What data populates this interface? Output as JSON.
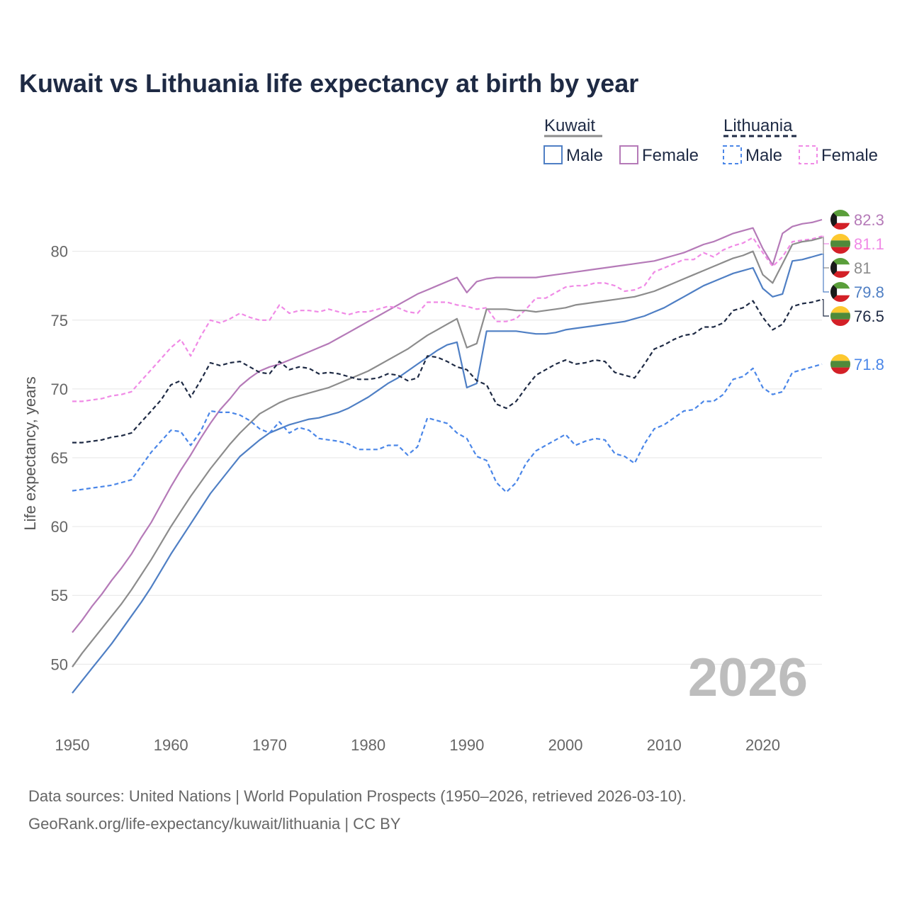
{
  "chart_data": {
    "type": "line",
    "title": "Kuwait vs Lithuania life expectancy at birth by year",
    "xlabel": "",
    "ylabel": "Life expectancy, years",
    "xlim": [
      1950,
      2026
    ],
    "ylim": [
      46,
      84
    ],
    "x_ticks": [
      "1950",
      "1960",
      "1970",
      "1980",
      "1990",
      "2000",
      "2010",
      "2020"
    ],
    "y_ticks": [
      "50",
      "55",
      "60",
      "65",
      "70",
      "75",
      "80"
    ],
    "current_year": "2026",
    "legend": {
      "groups": [
        {
          "label": "Kuwait",
          "items": [
            "Male",
            "Female"
          ]
        },
        {
          "label": "Lithuania",
          "items": [
            "Male",
            "Female"
          ]
        }
      ]
    },
    "x": [
      1950,
      1951,
      1952,
      1953,
      1954,
      1955,
      1956,
      1957,
      1958,
      1959,
      1960,
      1961,
      1962,
      1963,
      1964,
      1965,
      1966,
      1967,
      1968,
      1969,
      1970,
      1971,
      1972,
      1973,
      1974,
      1975,
      1976,
      1977,
      1978,
      1979,
      1980,
      1981,
      1982,
      1983,
      1984,
      1985,
      1986,
      1987,
      1988,
      1989,
      1990,
      1991,
      1992,
      1993,
      1994,
      1995,
      1996,
      1997,
      1998,
      1999,
      2000,
      2001,
      2002,
      2003,
      2004,
      2005,
      2006,
      2007,
      2008,
      2009,
      2010,
      2011,
      2012,
      2013,
      2014,
      2015,
      2016,
      2017,
      2018,
      2019,
      2020,
      2021,
      2022,
      2023,
      2024,
      2025,
      2026
    ],
    "series": [
      {
        "name": "Kuwait Female",
        "country": "Kuwait",
        "sex": "Female",
        "color": "#b57ab8",
        "dash": false,
        "end_label": "82.3",
        "values": [
          52.3,
          53.2,
          54.2,
          55.1,
          56.1,
          57.0,
          58.0,
          59.2,
          60.3,
          61.6,
          62.9,
          64.1,
          65.2,
          66.4,
          67.5,
          68.5,
          69.3,
          70.2,
          70.8,
          71.3,
          71.6,
          71.8,
          72.1,
          72.4,
          72.7,
          73.0,
          73.3,
          73.7,
          74.1,
          74.5,
          74.9,
          75.3,
          75.7,
          76.1,
          76.5,
          76.9,
          77.2,
          77.5,
          77.8,
          78.1,
          77.0,
          77.8,
          78.0,
          78.1,
          78.1,
          78.1,
          78.1,
          78.1,
          78.2,
          78.3,
          78.4,
          78.5,
          78.6,
          78.7,
          78.8,
          78.9,
          79.0,
          79.1,
          79.2,
          79.3,
          79.5,
          79.7,
          79.9,
          80.2,
          80.5,
          80.7,
          81.0,
          81.3,
          81.5,
          81.7,
          80.2,
          79.0,
          81.3,
          81.8,
          82.0,
          82.1,
          82.3
        ]
      },
      {
        "name": "Lithuania Female",
        "country": "Lithuania",
        "sex": "Female",
        "color": "#f08ae6",
        "dash": true,
        "end_label": "81.1",
        "values": [
          69.1,
          69.1,
          69.2,
          69.3,
          69.5,
          69.6,
          69.8,
          70.6,
          71.4,
          72.2,
          73.0,
          73.6,
          72.4,
          73.8,
          75.0,
          74.8,
          75.1,
          75.5,
          75.2,
          75.0,
          75.0,
          76.1,
          75.5,
          75.7,
          75.7,
          75.6,
          75.8,
          75.6,
          75.4,
          75.6,
          75.6,
          75.8,
          76.0,
          75.9,
          75.6,
          75.5,
          76.3,
          76.3,
          76.3,
          76.1,
          76.0,
          75.8,
          75.9,
          74.9,
          74.9,
          75.1,
          75.8,
          76.6,
          76.6,
          77.0,
          77.4,
          77.5,
          77.5,
          77.7,
          77.7,
          77.5,
          77.1,
          77.2,
          77.5,
          78.5,
          78.8,
          79.1,
          79.4,
          79.4,
          79.9,
          79.6,
          80.1,
          80.4,
          80.6,
          81.0,
          79.9,
          78.9,
          79.6,
          80.7,
          80.8,
          80.9,
          81.1
        ]
      },
      {
        "name": "Kuwait Total",
        "country": "Kuwait",
        "sex": "Total",
        "color": "#8c8c8c",
        "dash": false,
        "end_label": "81",
        "values": [
          49.8,
          50.8,
          51.7,
          52.6,
          53.5,
          54.4,
          55.4,
          56.5,
          57.6,
          58.8,
          60.0,
          61.1,
          62.2,
          63.2,
          64.2,
          65.1,
          66.0,
          66.8,
          67.5,
          68.2,
          68.6,
          69.0,
          69.3,
          69.5,
          69.7,
          69.9,
          70.1,
          70.4,
          70.7,
          71.0,
          71.3,
          71.7,
          72.1,
          72.5,
          72.9,
          73.4,
          73.9,
          74.3,
          74.7,
          75.1,
          73.0,
          73.3,
          75.8,
          75.8,
          75.8,
          75.7,
          75.7,
          75.6,
          75.7,
          75.8,
          75.9,
          76.1,
          76.2,
          76.3,
          76.4,
          76.5,
          76.6,
          76.7,
          76.9,
          77.1,
          77.4,
          77.7,
          78.0,
          78.3,
          78.6,
          78.9,
          79.2,
          79.5,
          79.7,
          80.0,
          78.3,
          77.7,
          79.1,
          80.5,
          80.7,
          80.8,
          81.0
        ]
      },
      {
        "name": "Kuwait Male",
        "country": "Kuwait",
        "sex": "Male",
        "color": "#4f7fc4",
        "dash": false,
        "end_label": "79.8",
        "values": [
          47.9,
          48.8,
          49.7,
          50.6,
          51.5,
          52.5,
          53.5,
          54.5,
          55.6,
          56.8,
          58.0,
          59.1,
          60.2,
          61.3,
          62.4,
          63.3,
          64.2,
          65.1,
          65.7,
          66.3,
          66.8,
          67.1,
          67.4,
          67.6,
          67.8,
          67.9,
          68.1,
          68.3,
          68.6,
          69.0,
          69.4,
          69.9,
          70.4,
          70.8,
          71.3,
          71.8,
          72.3,
          72.8,
          73.2,
          73.4,
          70.1,
          70.4,
          74.2,
          74.2,
          74.2,
          74.2,
          74.1,
          74.0,
          74.0,
          74.1,
          74.3,
          74.4,
          74.5,
          74.6,
          74.7,
          74.8,
          74.9,
          75.1,
          75.3,
          75.6,
          75.9,
          76.3,
          76.7,
          77.1,
          77.5,
          77.8,
          78.1,
          78.4,
          78.6,
          78.8,
          77.3,
          76.7,
          76.9,
          79.3,
          79.4,
          79.6,
          79.8
        ]
      },
      {
        "name": "Lithuania Total",
        "country": "Lithuania",
        "sex": "Total",
        "color": "#1e2a44",
        "dash": true,
        "end_label": "76.5",
        "values": [
          66.1,
          66.1,
          66.2,
          66.3,
          66.5,
          66.6,
          66.8,
          67.6,
          68.4,
          69.2,
          70.3,
          70.6,
          69.4,
          70.6,
          71.9,
          71.7,
          71.9,
          72.0,
          71.6,
          71.2,
          71.1,
          72.0,
          71.4,
          71.6,
          71.5,
          71.1,
          71.2,
          71.1,
          70.9,
          70.7,
          70.7,
          70.8,
          71.1,
          71.0,
          70.6,
          70.8,
          72.4,
          72.3,
          72.0,
          71.6,
          71.4,
          70.6,
          70.3,
          68.9,
          68.6,
          69.1,
          70.1,
          71.0,
          71.4,
          71.8,
          72.1,
          71.8,
          71.9,
          72.1,
          72.0,
          71.2,
          71.0,
          70.8,
          71.8,
          72.9,
          73.2,
          73.6,
          73.9,
          74.0,
          74.5,
          74.5,
          74.8,
          75.7,
          75.9,
          76.4,
          75.2,
          74.3,
          74.7,
          76.0,
          76.2,
          76.3,
          76.5
        ]
      },
      {
        "name": "Lithuania Male",
        "country": "Lithuania",
        "sex": "Male",
        "color": "#4a86e8",
        "dash": true,
        "end_label": "71.8",
        "values": [
          62.6,
          62.7,
          62.8,
          62.9,
          63.0,
          63.2,
          63.4,
          64.4,
          65.4,
          66.2,
          67.0,
          66.9,
          65.9,
          66.9,
          68.4,
          68.3,
          68.3,
          68.1,
          67.7,
          67.1,
          66.8,
          67.6,
          66.8,
          67.2,
          67.0,
          66.4,
          66.3,
          66.2,
          66.0,
          65.6,
          65.6,
          65.6,
          65.9,
          65.9,
          65.2,
          65.8,
          67.9,
          67.7,
          67.5,
          66.8,
          66.4,
          65.1,
          64.8,
          63.2,
          62.5,
          63.2,
          64.6,
          65.5,
          65.9,
          66.3,
          66.7,
          65.9,
          66.2,
          66.4,
          66.3,
          65.3,
          65.1,
          64.6,
          66.0,
          67.1,
          67.4,
          67.9,
          68.4,
          68.5,
          69.1,
          69.1,
          69.6,
          70.7,
          70.9,
          71.5,
          70.1,
          69.6,
          69.8,
          71.2,
          71.4,
          71.6,
          71.8
        ]
      }
    ]
  },
  "source_line1": "Data sources: United Nations | World Population Prospects (1950–2026, retrieved 2026-03-10).",
  "source_line2": "GeoRank.org/life-expectancy/kuwait/lithuania | CC BY"
}
